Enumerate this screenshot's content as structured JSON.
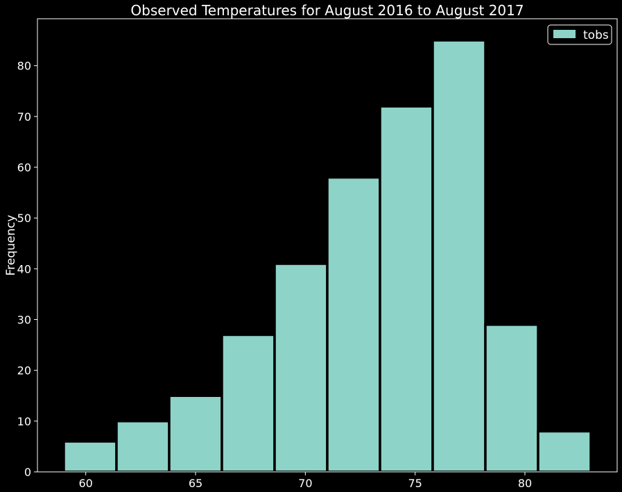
{
  "chart_data": {
    "type": "bar",
    "title": "Observed Temperatures for August 2016 to August 2017",
    "xlabel": "",
    "ylabel": "Frequency",
    "bins": [
      [
        59.0,
        61.4
      ],
      [
        61.4,
        63.8
      ],
      [
        63.8,
        66.2
      ],
      [
        66.2,
        68.6
      ],
      [
        68.6,
        71.0
      ],
      [
        71.0,
        73.4
      ],
      [
        73.4,
        75.8
      ],
      [
        75.8,
        78.2
      ],
      [
        78.2,
        80.6
      ],
      [
        80.6,
        83.0
      ]
    ],
    "values": [
      6,
      10,
      15,
      27,
      41,
      58,
      72,
      85,
      29,
      8
    ],
    "series": [
      {
        "name": "tobs",
        "values": [
          6,
          10,
          15,
          27,
          41,
          58,
          72,
          85,
          29,
          8
        ]
      }
    ],
    "xlim": [
      57.8,
      84.2
    ],
    "ylim": [
      0,
      89.25
    ],
    "xticks": [
      60,
      65,
      70,
      75,
      80
    ],
    "yticks": [
      0,
      10,
      20,
      30,
      40,
      50,
      60,
      70,
      80
    ],
    "grid": false,
    "legend_position": "top-right",
    "colors": {
      "background": "#000000",
      "bar": "#8dd3c7",
      "bar_edge": "#000000",
      "axes": "#ffffff",
      "text": "#ffffff"
    }
  }
}
